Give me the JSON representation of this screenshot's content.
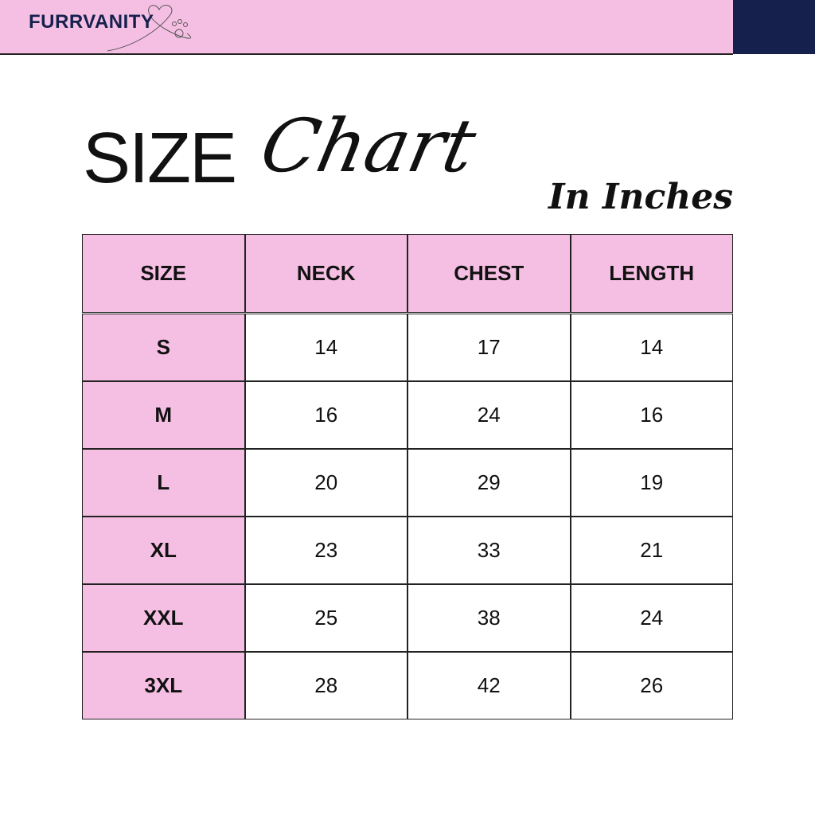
{
  "brand": {
    "name": "FURRVANITY",
    "bar_color": "#f5bfe3",
    "accent_color": "#15204d"
  },
  "title": {
    "word1": "SIZE",
    "word2": "Chart",
    "unit": "In Inches"
  },
  "table": {
    "headers": [
      "SIZE",
      "NECK",
      "CHEST",
      "LENGTH"
    ],
    "rows": [
      [
        "S",
        "14",
        "17",
        "14"
      ],
      [
        "M",
        "16",
        "24",
        "16"
      ],
      [
        "L",
        "20",
        "29",
        "19"
      ],
      [
        "XL",
        "23",
        "33",
        "21"
      ],
      [
        "XXL",
        "25",
        "38",
        "24"
      ],
      [
        "3XL",
        "28",
        "42",
        "26"
      ]
    ]
  }
}
